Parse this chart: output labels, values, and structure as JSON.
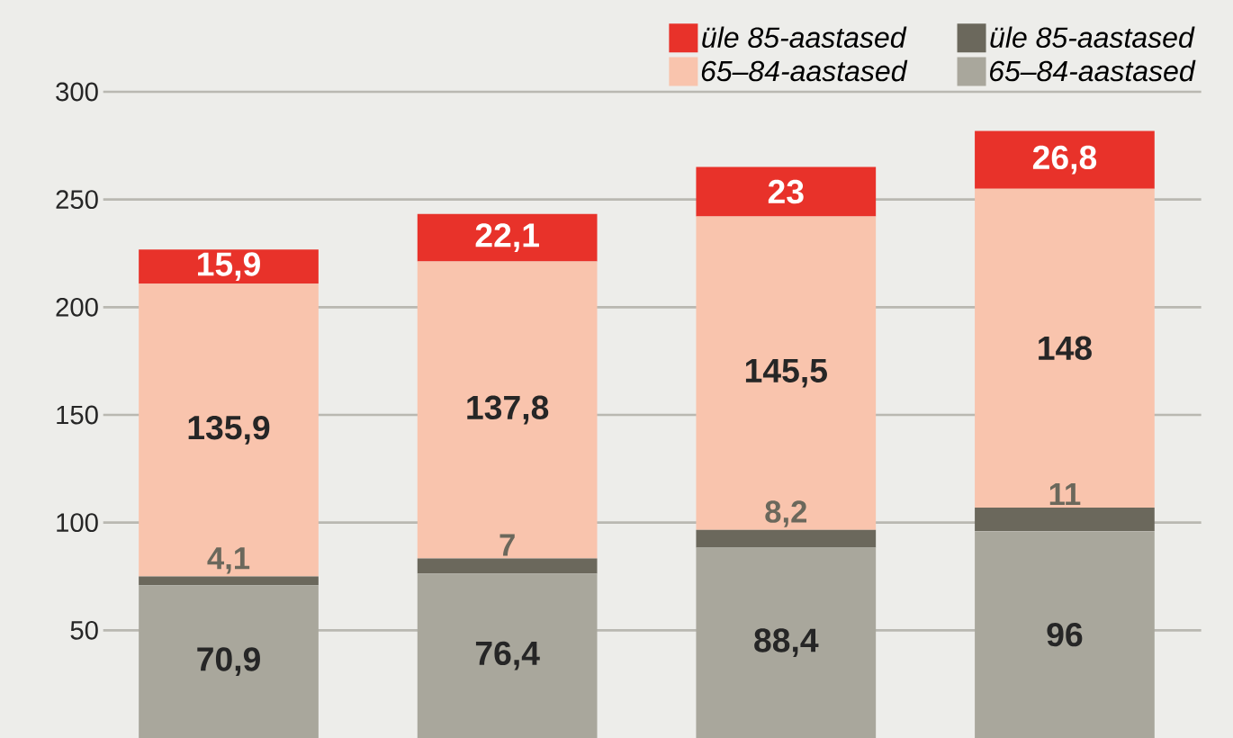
{
  "chart_data": {
    "type": "bar",
    "stacked": true,
    "categories": [
      null,
      null,
      null,
      null
    ],
    "ylim": [
      0,
      300
    ],
    "yticks": [
      50,
      100,
      150,
      200,
      250,
      300
    ],
    "grid": "y",
    "legend": "top right",
    "series": [
      {
        "name": "65–84-aastased",
        "color": "#a9a79c",
        "values": [
          70.9,
          76.4,
          88.4,
          96
        ],
        "value_labels": [
          "70,9",
          "76,4",
          "88,4",
          "96"
        ]
      },
      {
        "name": "üle 85-aastased",
        "color": "#6b685c",
        "values": [
          4.1,
          7,
          8.2,
          11
        ],
        "value_labels": [
          "4,1",
          "7",
          "8,2",
          "11"
        ]
      },
      {
        "name": "65–84-aastased",
        "color": "#f9c4ad",
        "values": [
          135.9,
          137.8,
          145.5,
          148
        ],
        "value_labels": [
          "135,9",
          "137,8",
          "145,5",
          "148"
        ]
      },
      {
        "name": "üle 85-aastased",
        "color": "#e8322a",
        "values": [
          15.9,
          22.1,
          23,
          26.8
        ],
        "value_labels": [
          "15,9",
          "22,1",
          "23",
          "26,8"
        ]
      }
    ]
  }
}
